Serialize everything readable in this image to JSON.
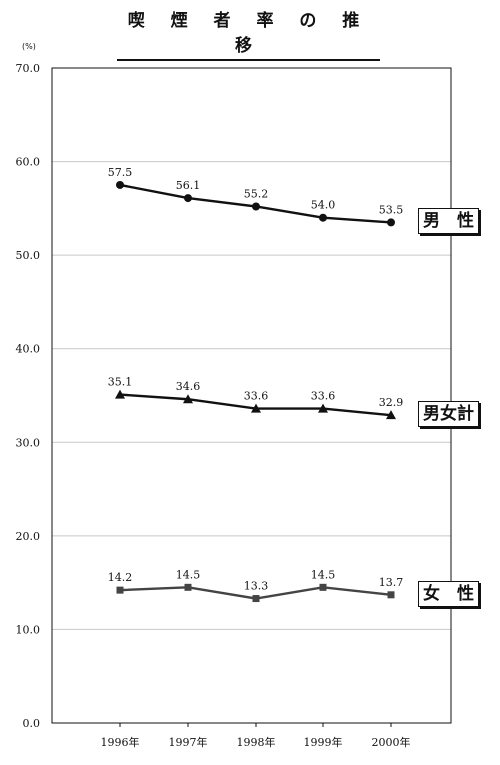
{
  "title": "喫 煙 者 率 の 推 移",
  "chart_data": {
    "type": "line",
    "title": "喫 煙 者 率 の 推 移",
    "unit": "(%)",
    "x": [
      "1996年",
      "1997年",
      "1998年",
      "1999年",
      "2000年"
    ],
    "ylim": [
      0,
      70
    ],
    "yticks": [
      "0.0",
      "10.0",
      "20.0",
      "30.0",
      "40.0",
      "50.0",
      "60.0",
      "70.0"
    ],
    "grid": true,
    "series": [
      {
        "name": "男　性",
        "marker": "circle",
        "color": "#111111",
        "values": [
          57.5,
          56.1,
          55.2,
          54.0,
          53.5
        ],
        "labels": [
          "57.5",
          "56.1",
          "55.2",
          "54.0",
          "53.5"
        ]
      },
      {
        "name": "男女計",
        "marker": "triangle",
        "color": "#111111",
        "values": [
          35.1,
          34.6,
          33.6,
          33.6,
          32.9
        ],
        "labels": [
          "35.1",
          "34.6",
          "33.6",
          "33.6",
          "32.9"
        ]
      },
      {
        "name": "女　性",
        "marker": "square",
        "color": "#444444",
        "values": [
          14.2,
          14.5,
          13.3,
          14.5,
          13.7
        ],
        "labels": [
          "14.2",
          "14.5",
          "13.3",
          "14.5",
          "13.7"
        ]
      }
    ]
  }
}
